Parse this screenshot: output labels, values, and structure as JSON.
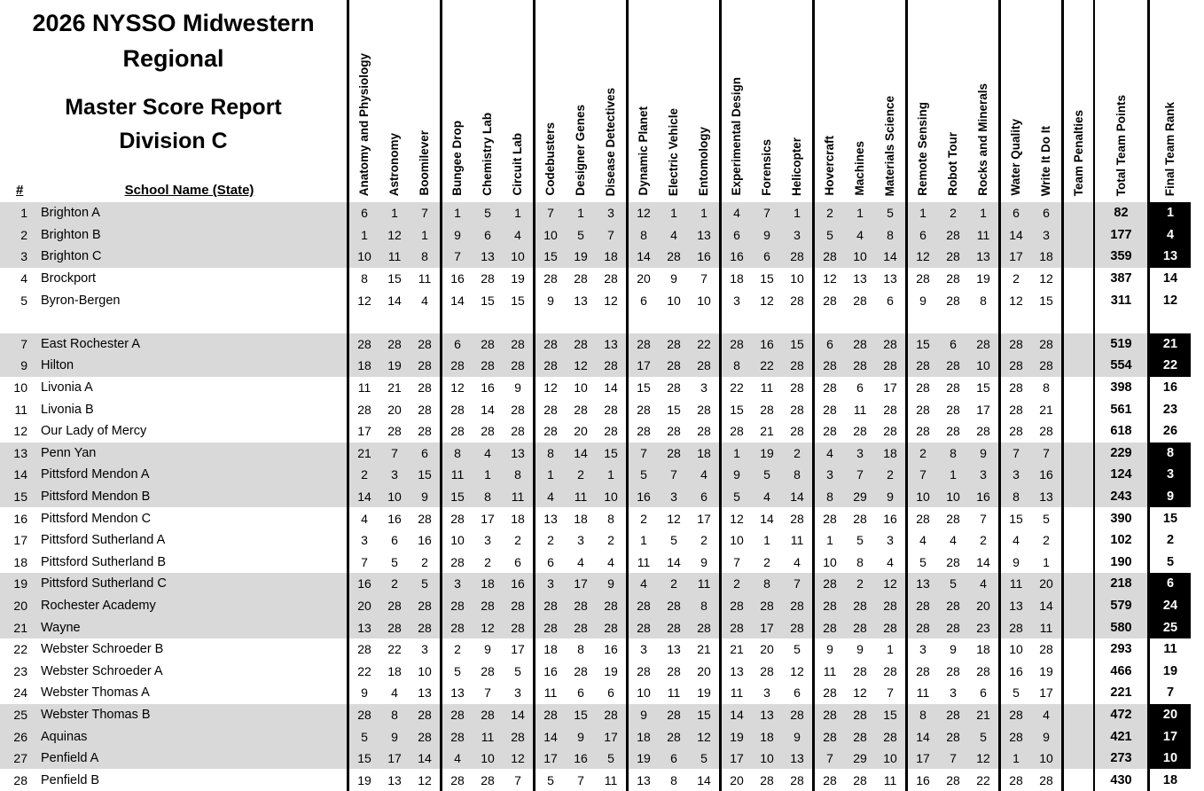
{
  "report": {
    "title_line1": "2026 NYSSO Midwestern",
    "title_line2": "Regional",
    "subtitle_line1": "Master Score Report",
    "subtitle_line2": "Division C",
    "col_num_header": "#",
    "col_school_header": "School Name (State)",
    "event_columns": [
      "Anatomy and Physiology",
      "Astronomy",
      "Boomilever",
      "Bungee Drop",
      "Chemistry Lab",
      "Circuit Lab",
      "Codebusters",
      "Designer Genes",
      "Disease Detectives",
      "Dynamic Planet",
      "Electric Vehicle",
      "Entomology",
      "Experimental Design",
      "Forensics",
      "Helicopter",
      "Hovercraft",
      "Machines",
      "Materials Science",
      "Remote Sensing",
      "Robot Tour",
      "Rocks and Minerals",
      "Water Quality",
      "Write It Do It"
    ],
    "event_groups": [
      3,
      3,
      3,
      3,
      3,
      3,
      3,
      2
    ],
    "summary_columns": [
      "Team Penalties",
      "Total Team Points",
      "Final Team Rank"
    ],
    "colors": {
      "band_gray": "#d9d9d9",
      "rank_highlight_bg": "#000000",
      "rank_highlight_text": "#ffffff"
    },
    "rows": [
      {
        "num": 1,
        "name": "Brighton A",
        "scores": [
          6,
          1,
          7,
          1,
          5,
          1,
          7,
          1,
          3,
          12,
          1,
          1,
          4,
          7,
          1,
          2,
          1,
          5,
          1,
          2,
          1,
          6,
          6
        ],
        "penalty": "",
        "total": 82,
        "rank": 1
      },
      {
        "num": 2,
        "name": "Brighton B",
        "scores": [
          1,
          12,
          1,
          9,
          6,
          4,
          10,
          5,
          7,
          8,
          4,
          13,
          6,
          9,
          3,
          5,
          4,
          8,
          6,
          28,
          11,
          14,
          3
        ],
        "penalty": "",
        "total": 177,
        "rank": 4
      },
      {
        "num": 3,
        "name": "Brighton C",
        "scores": [
          10,
          11,
          8,
          7,
          13,
          10,
          15,
          19,
          18,
          14,
          28,
          16,
          16,
          6,
          28,
          28,
          10,
          14,
          12,
          28,
          13,
          17,
          18
        ],
        "penalty": "",
        "total": 359,
        "rank": 13
      },
      {
        "num": 4,
        "name": "Brockport",
        "scores": [
          8,
          15,
          11,
          16,
          28,
          19,
          28,
          28,
          28,
          20,
          9,
          7,
          18,
          15,
          10,
          12,
          13,
          13,
          28,
          28,
          19,
          2,
          12
        ],
        "penalty": "",
        "total": 387,
        "rank": 14
      },
      {
        "num": 5,
        "name": "Byron-Bergen",
        "scores": [
          12,
          14,
          4,
          14,
          15,
          15,
          9,
          13,
          12,
          6,
          10,
          10,
          3,
          12,
          28,
          28,
          28,
          6,
          9,
          28,
          8,
          12,
          15
        ],
        "penalty": "",
        "total": 311,
        "rank": 12
      },
      {
        "num": "",
        "name": "",
        "scores": [],
        "penalty": "",
        "total": "",
        "rank": ""
      },
      {
        "num": 7,
        "name": "East Rochester A",
        "scores": [
          28,
          28,
          28,
          6,
          28,
          28,
          28,
          28,
          13,
          28,
          28,
          22,
          28,
          16,
          15,
          6,
          28,
          28,
          15,
          6,
          28,
          28,
          28
        ],
        "penalty": "",
        "total": 519,
        "rank": 21
      },
      {
        "num": 9,
        "name": "Hilton",
        "scores": [
          18,
          19,
          28,
          28,
          28,
          28,
          28,
          12,
          28,
          17,
          28,
          28,
          8,
          22,
          28,
          28,
          28,
          28,
          28,
          28,
          10,
          28,
          28
        ],
        "penalty": "",
        "total": 554,
        "rank": 22
      },
      {
        "num": 10,
        "name": "Livonia A",
        "scores": [
          11,
          21,
          28,
          12,
          16,
          9,
          12,
          10,
          14,
          15,
          28,
          3,
          22,
          11,
          28,
          28,
          6,
          17,
          28,
          28,
          15,
          28,
          8
        ],
        "penalty": "",
        "total": 398,
        "rank": 16
      },
      {
        "num": 11,
        "name": "Livonia B",
        "scores": [
          28,
          20,
          28,
          28,
          14,
          28,
          28,
          28,
          28,
          28,
          15,
          28,
          15,
          28,
          28,
          28,
          11,
          28,
          28,
          28,
          17,
          28,
          21
        ],
        "penalty": "",
        "total": 561,
        "rank": 23
      },
      {
        "num": 12,
        "name": "Our Lady of Mercy",
        "scores": [
          17,
          28,
          28,
          28,
          28,
          28,
          28,
          20,
          28,
          28,
          28,
          28,
          28,
          21,
          28,
          28,
          28,
          28,
          28,
          28,
          28,
          28,
          28
        ],
        "penalty": "",
        "total": 618,
        "rank": 26
      },
      {
        "num": 13,
        "name": "Penn Yan",
        "scores": [
          21,
          7,
          6,
          8,
          4,
          13,
          8,
          14,
          15,
          7,
          28,
          18,
          1,
          19,
          2,
          4,
          3,
          18,
          2,
          8,
          9,
          7,
          7
        ],
        "penalty": "",
        "total": 229,
        "rank": 8
      },
      {
        "num": 14,
        "name": "Pittsford Mendon A",
        "scores": [
          2,
          3,
          15,
          11,
          1,
          8,
          1,
          2,
          1,
          5,
          7,
          4,
          9,
          5,
          8,
          3,
          7,
          2,
          7,
          1,
          3,
          3,
          16
        ],
        "penalty": "",
        "total": 124,
        "rank": 3
      },
      {
        "num": 15,
        "name": "Pittsford Mendon B",
        "scores": [
          14,
          10,
          9,
          15,
          8,
          11,
          4,
          11,
          10,
          16,
          3,
          6,
          5,
          4,
          14,
          8,
          29,
          9,
          10,
          10,
          16,
          8,
          13
        ],
        "penalty": "",
        "total": 243,
        "rank": 9
      },
      {
        "num": 16,
        "name": "Pittsford Mendon C",
        "scores": [
          4,
          16,
          28,
          28,
          17,
          18,
          13,
          18,
          8,
          2,
          12,
          17,
          12,
          14,
          28,
          28,
          28,
          16,
          28,
          28,
          7,
          15,
          5
        ],
        "penalty": "",
        "total": 390,
        "rank": 15
      },
      {
        "num": 17,
        "name": "Pittsford Sutherland A",
        "scores": [
          3,
          6,
          16,
          10,
          3,
          2,
          2,
          3,
          2,
          1,
          5,
          2,
          10,
          1,
          11,
          1,
          5,
          3,
          4,
          4,
          2,
          4,
          2
        ],
        "penalty": "",
        "total": 102,
        "rank": 2
      },
      {
        "num": 18,
        "name": "Pittsford Sutherland B",
        "scores": [
          7,
          5,
          2,
          28,
          2,
          6,
          6,
          4,
          4,
          11,
          14,
          9,
          7,
          2,
          4,
          10,
          8,
          4,
          5,
          28,
          14,
          9,
          1
        ],
        "penalty": "",
        "total": 190,
        "rank": 5
      },
      {
        "num": 19,
        "name": "Pittsford Sutherland C",
        "scores": [
          16,
          2,
          5,
          3,
          18,
          16,
          3,
          17,
          9,
          4,
          2,
          11,
          2,
          8,
          7,
          28,
          2,
          12,
          13,
          5,
          4,
          11,
          20
        ],
        "penalty": "",
        "total": 218,
        "rank": 6
      },
      {
        "num": 20,
        "name": "Rochester Academy",
        "scores": [
          20,
          28,
          28,
          28,
          28,
          28,
          28,
          28,
          28,
          28,
          28,
          8,
          28,
          28,
          28,
          28,
          28,
          28,
          28,
          28,
          20,
          13,
          14
        ],
        "penalty": "",
        "total": 579,
        "rank": 24
      },
      {
        "num": 21,
        "name": "Wayne",
        "scores": [
          13,
          28,
          28,
          28,
          12,
          28,
          28,
          28,
          28,
          28,
          28,
          28,
          28,
          17,
          28,
          28,
          28,
          28,
          28,
          28,
          23,
          28,
          11
        ],
        "penalty": "",
        "total": 580,
        "rank": 25
      },
      {
        "num": 22,
        "name": "Webster Schroeder B",
        "scores": [
          28,
          22,
          3,
          2,
          9,
          17,
          18,
          8,
          16,
          3,
          13,
          21,
          21,
          20,
          5,
          9,
          9,
          1,
          3,
          9,
          18,
          10,
          28
        ],
        "penalty": "",
        "total": 293,
        "rank": 11
      },
      {
        "num": 23,
        "name": "Webster Schroeder A",
        "scores": [
          22,
          18,
          10,
          5,
          28,
          5,
          16,
          28,
          19,
          28,
          28,
          20,
          13,
          28,
          12,
          11,
          28,
          28,
          28,
          28,
          28,
          16,
          19
        ],
        "penalty": "",
        "total": 466,
        "rank": 19
      },
      {
        "num": 24,
        "name": "Webster Thomas A",
        "scores": [
          9,
          4,
          13,
          13,
          7,
          3,
          11,
          6,
          6,
          10,
          11,
          19,
          11,
          3,
          6,
          28,
          12,
          7,
          11,
          3,
          6,
          5,
          17
        ],
        "penalty": "",
        "total": 221,
        "rank": 7
      },
      {
        "num": 25,
        "name": "Webster Thomas B",
        "scores": [
          28,
          8,
          28,
          28,
          28,
          14,
          28,
          15,
          28,
          9,
          28,
          15,
          14,
          13,
          28,
          28,
          28,
          15,
          8,
          28,
          21,
          28,
          4
        ],
        "penalty": "",
        "total": 472,
        "rank": 20
      },
      {
        "num": 26,
        "name": "Aquinas",
        "scores": [
          5,
          9,
          28,
          28,
          11,
          28,
          14,
          9,
          17,
          18,
          28,
          12,
          19,
          18,
          9,
          28,
          28,
          28,
          14,
          28,
          5,
          28,
          9
        ],
        "penalty": "",
        "total": 421,
        "rank": 17
      },
      {
        "num": 27,
        "name": "Penfield A",
        "scores": [
          15,
          17,
          14,
          4,
          10,
          12,
          17,
          16,
          5,
          19,
          6,
          5,
          17,
          10,
          13,
          7,
          29,
          10,
          17,
          7,
          12,
          1,
          10
        ],
        "penalty": "",
        "total": 273,
        "rank": 10
      },
      {
        "num": 28,
        "name": "Penfield B",
        "scores": [
          19,
          13,
          12,
          28,
          28,
          7,
          5,
          7,
          11,
          13,
          8,
          14,
          20,
          28,
          28,
          28,
          28,
          11,
          16,
          28,
          22,
          28,
          28
        ],
        "penalty": "",
        "total": 430,
        "rank": 18
      }
    ]
  }
}
